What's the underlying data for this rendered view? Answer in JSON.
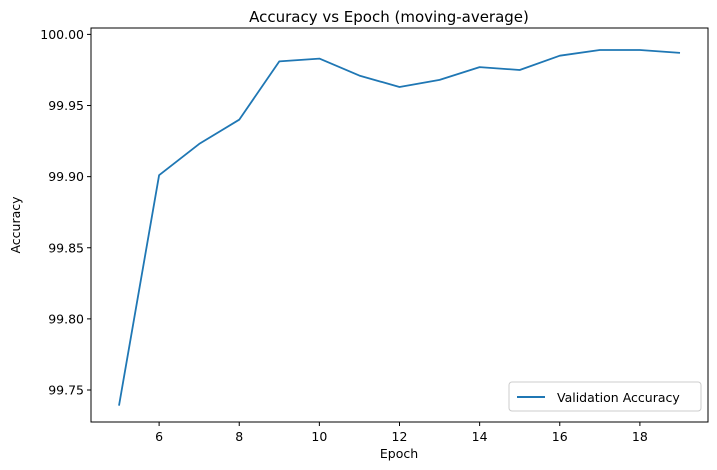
{
  "chart_data": {
    "type": "line",
    "title": "Accuracy vs Epoch (moving-average)",
    "xlabel": "Epoch",
    "ylabel": "Accuracy",
    "xlim": [
      4.3,
      19.7
    ],
    "ylim": [
      99.7275,
      100.0045
    ],
    "xticks": [
      6,
      8,
      10,
      12,
      14,
      16,
      18
    ],
    "yticks": [
      99.75,
      99.8,
      99.85,
      99.9,
      99.95,
      100.0
    ],
    "ytick_labels": [
      "99.75",
      "99.80",
      "99.85",
      "99.90",
      "99.95",
      "100.00"
    ],
    "grid": false,
    "legend_position": "lower-right",
    "series": [
      {
        "name": "Validation Accuracy",
        "color": "#1f77b4",
        "x": [
          5,
          6,
          7,
          8,
          9,
          10,
          11,
          12,
          13,
          14,
          15,
          16,
          17,
          18,
          19
        ],
        "y": [
          99.739,
          99.901,
          99.923,
          99.94,
          99.981,
          99.983,
          99.971,
          99.963,
          99.968,
          99.977,
          99.975,
          99.985,
          99.989,
          99.989,
          99.987
        ]
      }
    ]
  }
}
